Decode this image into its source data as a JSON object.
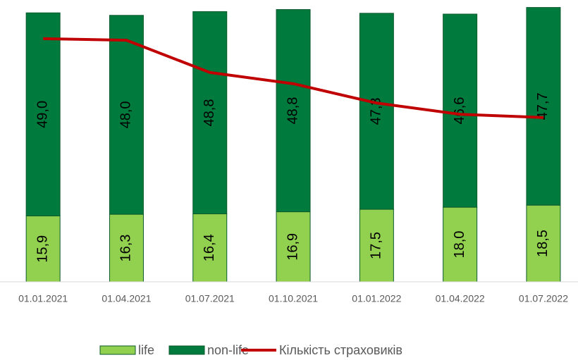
{
  "chart_data": {
    "type": "bar",
    "categories": [
      "01.01.2021",
      "01.04.2021",
      "01.07.2021",
      "01.10.2021",
      "01.01.2022",
      "01.04.2022",
      "01.07.2022"
    ],
    "stacked": true,
    "ylim": [
      0,
      68
    ],
    "y2lim": [
      59,
      234
    ],
    "series": [
      {
        "name": "life",
        "type": "bar",
        "color": "#92d050",
        "values": [
          15.9,
          16.3,
          16.4,
          16.9,
          17.5,
          18.0,
          18.5
        ],
        "value_labels": [
          "15,9",
          "16,3",
          "16,4",
          "16,9",
          "17,5",
          "18,0",
          "18,5"
        ]
      },
      {
        "name": "non-life",
        "type": "bar",
        "color": "#007a3d",
        "values": [
          49.0,
          48.0,
          48.8,
          48.8,
          47.3,
          46.6,
          47.7
        ],
        "value_labels": [
          "49,0",
          "48,0",
          "48,8",
          "48,8",
          "47,3",
          "46,6",
          "47,7"
        ]
      },
      {
        "name": "Кількість страховиків",
        "type": "line",
        "axis": "y2",
        "color": "#c00000",
        "values": [
          210,
          209,
          189,
          182,
          170,
          163,
          161
        ]
      }
    ],
    "legend": "bottom"
  }
}
